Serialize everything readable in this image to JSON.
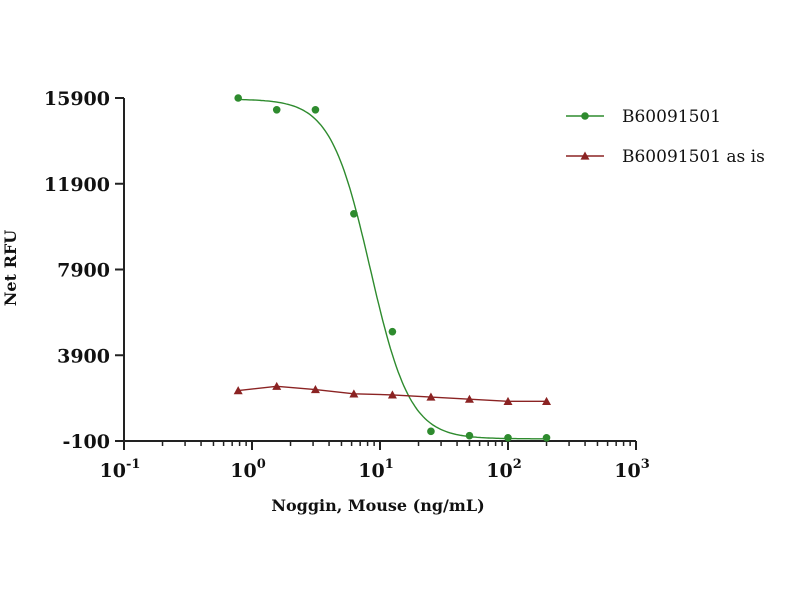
{
  "chart_data": {
    "type": "scatter",
    "title": "",
    "xlabel": "Noggin, Mouse (ng/mL)",
    "ylabel": "Net RFU",
    "x_scale": "log",
    "xlim": [
      0.1,
      1000
    ],
    "ylim": [
      -100,
      15900
    ],
    "x_tick_labels": [
      {
        "base": "10",
        "exp": "-1"
      },
      {
        "base": "10",
        "exp": "0"
      },
      {
        "base": "10",
        "exp": "1"
      },
      {
        "base": "10",
        "exp": "2"
      },
      {
        "base": "10",
        "exp": "3"
      }
    ],
    "y_ticks": [
      -100,
      3900,
      7900,
      11900,
      15900
    ],
    "y_tick_labels": [
      "-100",
      "3900",
      "7900",
      "11900",
      "15900"
    ],
    "grid": false,
    "legend_position": "top-right",
    "series": [
      {
        "name": "B60091501",
        "color": "#2e8b2e",
        "marker": "circle",
        "x": [
          0.78,
          1.56,
          3.13,
          6.25,
          12.5,
          25,
          50,
          100,
          200
        ],
        "y": [
          15900,
          15350,
          15350,
          10500,
          5000,
          350,
          150,
          50,
          50
        ],
        "fit": "4pl",
        "fit_params": {
          "top": 15850,
          "bottom": 0,
          "ec50": 8.4,
          "hill": 2.8
        }
      },
      {
        "name": "B60091501 as is",
        "color": "#8b2323",
        "marker": "triangle",
        "x": [
          0.78,
          1.56,
          3.13,
          6.25,
          12.5,
          25,
          50,
          100,
          200
        ],
        "y": [
          2250,
          2450,
          2300,
          2100,
          2050,
          1950,
          1850,
          1750,
          1750
        ],
        "fit": "line"
      }
    ]
  }
}
